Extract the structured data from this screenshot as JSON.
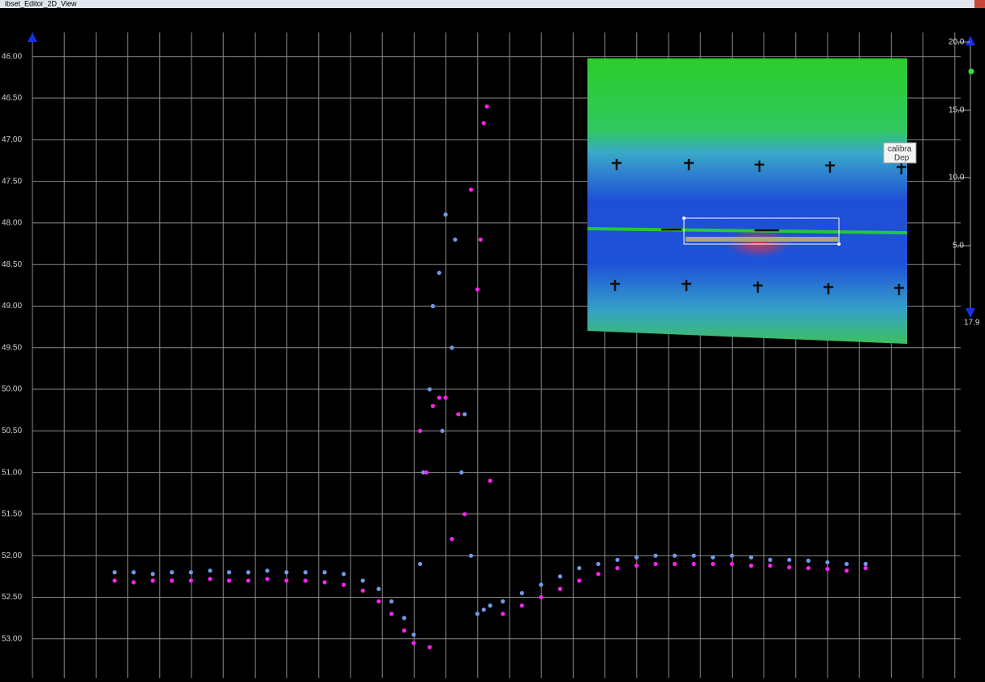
{
  "window": {
    "title": "ibset_Editor_2D_View"
  },
  "chart_data": {
    "type": "scatter",
    "xlim": [
      -1.0,
      29.95
    ],
    "ylim": [
      53.47,
      45.71
    ],
    "yticks": [
      {
        "value": 46,
        "label": "46.00"
      },
      {
        "value": 46.5,
        "label": "46.50"
      },
      {
        "value": 47,
        "label": "47.00"
      },
      {
        "value": 47.5,
        "label": "47.50"
      },
      {
        "value": 48,
        "label": "48.00"
      },
      {
        "value": 48.5,
        "label": "48.50"
      },
      {
        "value": 49,
        "label": "49.00"
      },
      {
        "value": 49.5,
        "label": "49.50"
      },
      {
        "value": 50,
        "label": "50.00"
      },
      {
        "value": 50.5,
        "label": "50.50"
      },
      {
        "value": 51,
        "label": "51.00"
      },
      {
        "value": 51.5,
        "label": "51.50"
      },
      {
        "value": 52,
        "label": "52.00"
      },
      {
        "value": 52.5,
        "label": "52.50"
      },
      {
        "value": 53,
        "label": "53.00"
      }
    ],
    "grid": true,
    "series": [
      {
        "color": "#6f9ae8",
        "x": [
          2.6,
          3.2,
          3.8,
          4.4,
          5,
          5.6,
          6.2,
          6.8,
          7.4,
          8,
          8.6,
          9.2,
          9.8,
          10.4,
          10.9,
          11.3,
          11.7,
          12.0,
          12.2,
          12.3,
          12.5,
          12.6,
          12.8,
          12.9,
          13.0,
          13.2,
          13.3,
          13.5,
          13.6,
          13.8,
          14.0,
          14.2,
          14.4,
          14.8,
          15.4,
          16,
          16.6,
          17.2,
          17.8,
          18.4,
          19,
          19.6,
          20.2,
          20.8,
          21.4,
          22,
          22.6,
          23.2,
          23.8,
          24.4,
          25,
          25.6,
          26.2
        ],
        "values": [
          52.2,
          52.2,
          52.22,
          52.2,
          52.2,
          52.18,
          52.2,
          52.2,
          52.18,
          52.2,
          52.2,
          52.2,
          52.22,
          52.3,
          52.4,
          52.55,
          52.75,
          52.95,
          52.1,
          51.0,
          50.0,
          49.0,
          48.6,
          50.5,
          47.9,
          49.5,
          48.2,
          51.0,
          50.3,
          52.0,
          52.7,
          52.65,
          52.6,
          52.55,
          52.45,
          52.35,
          52.25,
          52.15,
          52.1,
          52.05,
          52.02,
          52.0,
          52.0,
          52.0,
          52.02,
          52.0,
          52.02,
          52.05,
          52.05,
          52.06,
          52.08,
          52.1,
          52.1
        ]
      },
      {
        "color": "#ff22ee",
        "x": [
          2.6,
          3.2,
          3.8,
          4.4,
          5,
          5.6,
          6.2,
          6.8,
          7.4,
          8,
          8.6,
          9.2,
          9.8,
          10.4,
          10.9,
          11.3,
          11.7,
          12.0,
          12.5,
          12.2,
          12.4,
          12.6,
          12.8,
          13.0,
          13.2,
          13.4,
          13.6,
          13.8,
          14.0,
          14.1,
          14.2,
          14.3,
          14.4,
          14.8,
          15.4,
          16,
          16.6,
          17.2,
          17.8,
          18.4,
          19,
          19.6,
          20.2,
          20.8,
          21.4,
          22,
          22.6,
          23.2,
          23.8,
          24.4,
          25,
          25.6,
          26.2
        ],
        "values": [
          52.3,
          52.32,
          52.3,
          52.3,
          52.3,
          52.28,
          52.3,
          52.3,
          52.28,
          52.3,
          52.3,
          52.32,
          52.35,
          52.42,
          52.55,
          52.7,
          52.9,
          53.05,
          53.1,
          50.5,
          51.0,
          50.2,
          50.1,
          50.1,
          51.8,
          50.3,
          51.5,
          47.6,
          48.8,
          48.2,
          46.8,
          46.6,
          51.1,
          52.7,
          52.6,
          52.5,
          52.4,
          52.3,
          52.22,
          52.15,
          52.12,
          52.1,
          52.1,
          52.1,
          52.1,
          52.1,
          52.12,
          52.12,
          52.14,
          52.15,
          52.16,
          52.18,
          52.15
        ]
      }
    ]
  },
  "color_scale": {
    "labels": [
      "20.0",
      "15.0",
      "10.0",
      "5.0"
    ],
    "current": "17.9"
  },
  "tooltip": {
    "lines": [
      "calibra",
      "Dep"
    ]
  }
}
